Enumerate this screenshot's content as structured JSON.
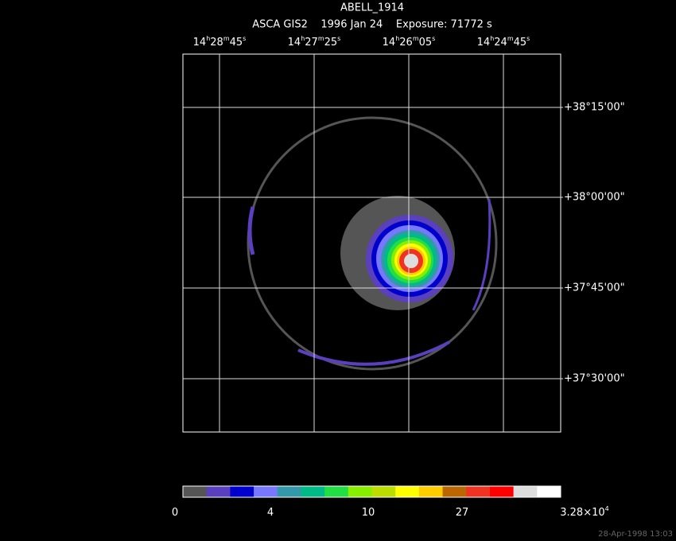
{
  "header": {
    "title": "ABELL_1914",
    "subtitle": "ASCA GIS2    1996 Jan 24    Exposure: 71772 s"
  },
  "ra_labels": [
    [
      "14",
      "h",
      "28",
      "m",
      "45",
      "s"
    ],
    [
      "14",
      "h",
      "27",
      "m",
      "25",
      "s"
    ],
    [
      "14",
      "h",
      "26",
      "m",
      "05",
      "s"
    ],
    [
      "14",
      "h",
      "24",
      "m",
      "45",
      "s"
    ]
  ],
  "dec_labels": [
    "+38°15'00\"",
    "+38°00'00\"",
    "+37°45'00\"",
    "+37°30'00\""
  ],
  "colorbar": {
    "colors": [
      "#555555",
      "#5a3fbf",
      "#0000cc",
      "#7777ff",
      "#3399aa",
      "#00bb88",
      "#22dd44",
      "#88ee00",
      "#bbdd00",
      "#ffff00",
      "#ffcc00",
      "#bb6600",
      "#ee3322",
      "#ff0000",
      "#dddddd",
      "#ffffff"
    ],
    "labels": [
      [
        "0"
      ],
      [
        "4"
      ],
      [
        "10"
      ],
      [
        "27"
      ],
      [
        "3.28×10",
        "4"
      ]
    ]
  },
  "footer": "28-Apr-1998 13:03"
}
